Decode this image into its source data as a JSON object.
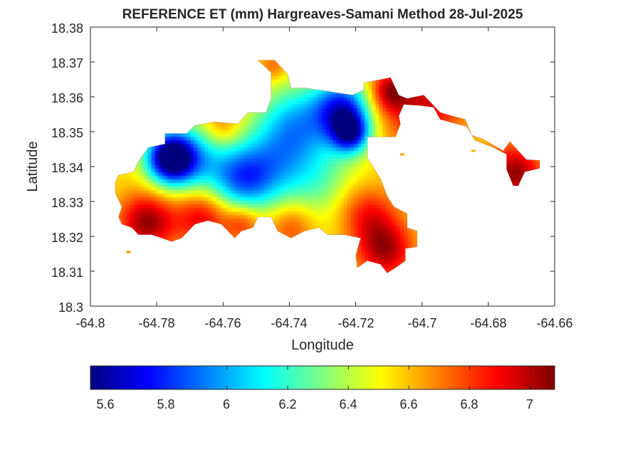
{
  "colors": {
    "jet": [
      "#00007f",
      "#0000ff",
      "#007fff",
      "#00ffff",
      "#7fff7f",
      "#ffff00",
      "#ff7f00",
      "#ff0000",
      "#7f0000"
    ],
    "axis": "#262626",
    "background": "#ffffff"
  },
  "chart_data": {
    "type": "heatmap",
    "title": "REFERENCE ET (mm) Hargreaves-Samani Method  28-Jul-2025",
    "xlabel": "Longitude",
    "ylabel": "Latitude",
    "xlim": [
      -64.8,
      -64.66
    ],
    "ylim": [
      18.3,
      18.38
    ],
    "x_ticks": [
      -64.8,
      -64.78,
      -64.76,
      -64.74,
      -64.72,
      -64.7,
      -64.68,
      -64.66
    ],
    "x_tick_labels": [
      "-64.8",
      "-64.78",
      "-64.76",
      "-64.74",
      "-64.72",
      "-64.7",
      "-64.68",
      "-64.66"
    ],
    "y_ticks": [
      18.3,
      18.31,
      18.32,
      18.33,
      18.34,
      18.35,
      18.36,
      18.37,
      18.38
    ],
    "y_tick_labels": [
      "18.3",
      "18.31",
      "18.32",
      "18.33",
      "18.34",
      "18.35",
      "18.36",
      "18.37",
      "18.38"
    ],
    "grid": false,
    "colormap": "jet",
    "colorbar": {
      "location": "below",
      "range": [
        5.55,
        7.08
      ],
      "ticks": [
        5.6,
        5.8,
        6,
        6.2,
        6.4,
        6.6,
        6.8,
        7
      ],
      "tick_labels": [
        "5.6",
        "5.8",
        "6",
        "6.2",
        "6.4",
        "6.6",
        "6.8",
        "7"
      ]
    },
    "field": {
      "base_value": 6.55,
      "hotspots": [
        {
          "lon": -64.776,
          "lat": 18.3425,
          "value": 5.58,
          "spread": 0.005
        },
        {
          "lon": -64.724,
          "lat": 18.3565,
          "value": 5.8,
          "spread": 0.006
        },
        {
          "lon": -64.7215,
          "lat": 18.3495,
          "value": 5.82,
          "spread": 0.004
        },
        {
          "lon": -64.755,
          "lat": 18.336,
          "value": 6.0,
          "spread": 0.007
        },
        {
          "lon": -64.738,
          "lat": 18.352,
          "value": 6.05,
          "spread": 0.008
        },
        {
          "lon": -64.77,
          "lat": 18.342,
          "value": 6.1,
          "spread": 0.007
        },
        {
          "lon": -64.746,
          "lat": 18.34,
          "value": 6.2,
          "spread": 0.008
        },
        {
          "lon": -64.731,
          "lat": 18.336,
          "value": 6.3,
          "spread": 0.008
        },
        {
          "lon": -64.783,
          "lat": 18.324,
          "value": 7.05,
          "spread": 0.006
        },
        {
          "lon": -64.766,
          "lat": 18.326,
          "value": 6.95,
          "spread": 0.006
        },
        {
          "lon": -64.754,
          "lat": 18.324,
          "value": 6.85,
          "spread": 0.004
        },
        {
          "lon": -64.711,
          "lat": 18.316,
          "value": 7.0,
          "spread": 0.006
        },
        {
          "lon": -64.716,
          "lat": 18.326,
          "value": 6.85,
          "spread": 0.006
        },
        {
          "lon": -64.7395,
          "lat": 18.323,
          "value": 6.8,
          "spread": 0.005
        },
        {
          "lon": -64.76,
          "lat": 18.3515,
          "value": 6.75,
          "spread": 0.004
        },
        {
          "lon": -64.71,
          "lat": 18.3615,
          "value": 6.9,
          "spread": 0.004
        },
        {
          "lon": -64.745,
          "lat": 18.3685,
          "value": 6.75,
          "spread": 0.003
        },
        {
          "lon": -64.7,
          "lat": 18.358,
          "value": 6.95,
          "spread": 0.009
        },
        {
          "lon": -64.672,
          "lat": 18.338,
          "value": 7.05,
          "spread": 0.006
        },
        {
          "lon": -64.7225,
          "lat": 18.33,
          "value": 6.6,
          "spread": 0.005
        }
      ]
    },
    "region_outline": [
      [
        -64.7925,
        18.3355
      ],
      [
        -64.7915,
        18.3375
      ],
      [
        -64.787,
        18.3385
      ],
      [
        -64.7855,
        18.3415
      ],
      [
        -64.7825,
        18.3455
      ],
      [
        -64.7775,
        18.3465
      ],
      [
        -64.7775,
        18.3495
      ],
      [
        -64.771,
        18.3495
      ],
      [
        -64.7685,
        18.3518
      ],
      [
        -64.7625,
        18.3528
      ],
      [
        -64.7555,
        18.3522
      ],
      [
        -64.7525,
        18.3555
      ],
      [
        -64.747,
        18.3555
      ],
      [
        -64.7455,
        18.3595
      ],
      [
        -64.7455,
        18.367
      ],
      [
        -64.7495,
        18.3705
      ],
      [
        -64.7445,
        18.3705
      ],
      [
        -64.7425,
        18.3685
      ],
      [
        -64.7405,
        18.3665
      ],
      [
        -64.7395,
        18.3625
      ],
      [
        -64.735,
        18.3625
      ],
      [
        -64.728,
        18.3615
      ],
      [
        -64.721,
        18.3605
      ],
      [
        -64.7175,
        18.362
      ],
      [
        -64.7175,
        18.364
      ],
      [
        -64.7095,
        18.3655
      ],
      [
        -64.707,
        18.3605
      ],
      [
        -64.7045,
        18.3595
      ],
      [
        -64.6995,
        18.3605
      ],
      [
        -64.6975,
        18.3585
      ],
      [
        -64.6945,
        18.3555
      ],
      [
        -64.687,
        18.3535
      ],
      [
        -64.685,
        18.349
      ],
      [
        -64.6815,
        18.3478
      ],
      [
        -64.6755,
        18.3445
      ],
      [
        -64.6735,
        18.3472
      ],
      [
        -64.671,
        18.3445
      ],
      [
        -64.6685,
        18.342
      ],
      [
        -64.6645,
        18.3418
      ],
      [
        -64.6645,
        18.3395
      ],
      [
        -64.669,
        18.3385
      ],
      [
        -64.671,
        18.3345
      ],
      [
        -64.6725,
        18.3345
      ],
      [
        -64.6745,
        18.3392
      ],
      [
        -64.6745,
        18.3435
      ],
      [
        -64.6785,
        18.3455
      ],
      [
        -64.684,
        18.3475
      ],
      [
        -64.6865,
        18.3515
      ],
      [
        -64.6945,
        18.3535
      ],
      [
        -64.6965,
        18.357
      ],
      [
        -64.7005,
        18.3575
      ],
      [
        -64.7055,
        18.3578
      ],
      [
        -64.707,
        18.3545
      ],
      [
        -64.7065,
        18.3522
      ],
      [
        -64.708,
        18.3485
      ],
      [
        -64.7165,
        18.3485
      ],
      [
        -64.7165,
        18.3425
      ],
      [
        -64.7145,
        18.3395
      ],
      [
        -64.7125,
        18.3365
      ],
      [
        -64.7115,
        18.334
      ],
      [
        -64.7105,
        18.3315
      ],
      [
        -64.7085,
        18.3285
      ],
      [
        -64.7045,
        18.3265
      ],
      [
        -64.7045,
        18.3225
      ],
      [
        -64.7015,
        18.3215
      ],
      [
        -64.7015,
        18.317
      ],
      [
        -64.705,
        18.3165
      ],
      [
        -64.705,
        18.313
      ],
      [
        -64.708,
        18.311
      ],
      [
        -64.7105,
        18.3095
      ],
      [
        -64.7125,
        18.312
      ],
      [
        -64.7165,
        18.313
      ],
      [
        -64.7195,
        18.311
      ],
      [
        -64.72,
        18.3145
      ],
      [
        -64.7185,
        18.3195
      ],
      [
        -64.7235,
        18.3205
      ],
      [
        -64.7285,
        18.3205
      ],
      [
        -64.731,
        18.3225
      ],
      [
        -64.7355,
        18.3215
      ],
      [
        -64.7395,
        18.3195
      ],
      [
        -64.7435,
        18.3215
      ],
      [
        -64.7455,
        18.3255
      ],
      [
        -64.7495,
        18.3255
      ],
      [
        -64.751,
        18.3225
      ],
      [
        -64.7545,
        18.3215
      ],
      [
        -64.7565,
        18.3195
      ],
      [
        -64.7605,
        18.3235
      ],
      [
        -64.7645,
        18.3245
      ],
      [
        -64.7685,
        18.3235
      ],
      [
        -64.7725,
        18.3195
      ],
      [
        -64.7755,
        18.3185
      ],
      [
        -64.7785,
        18.3195
      ],
      [
        -64.7815,
        18.3205
      ],
      [
        -64.7855,
        18.3205
      ],
      [
        -64.7875,
        18.3225
      ],
      [
        -64.7905,
        18.3235
      ],
      [
        -64.7915,
        18.3255
      ],
      [
        -64.7905,
        18.3285
      ],
      [
        -64.7925,
        18.3325
      ]
    ],
    "outliers": [
      {
        "lon": -64.7885,
        "lat": 18.3155
      },
      {
        "lon": -64.706,
        "lat": 18.3435
      },
      {
        "lon": -64.6845,
        "lat": 18.3445
      }
    ]
  }
}
